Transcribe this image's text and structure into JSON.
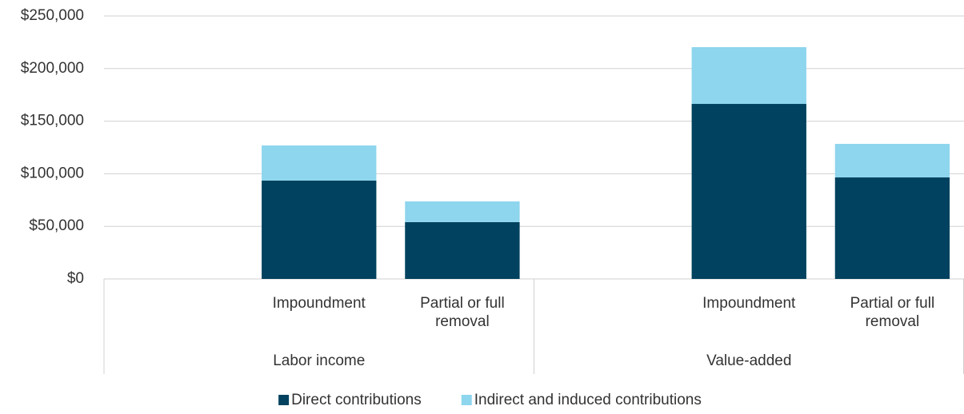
{
  "chart_data": {
    "type": "stacked_bar",
    "categories": [
      null,
      "Impoundment",
      "Partial or full removal",
      null,
      "Impoundment",
      "Partial or full removal"
    ],
    "groups": [
      "Labor income",
      "Value-added"
    ],
    "series": [
      {
        "name": "Direct contributions",
        "color": "#00425f",
        "values": [
          null,
          93500,
          54000,
          null,
          166400,
          96500
        ]
      },
      {
        "name": "Indirect and induced contributions",
        "color": "#8ed5ee",
        "values": [
          null,
          33400,
          19700,
          null,
          54000,
          31900
        ]
      }
    ],
    "ylim": [
      0,
      250000
    ],
    "yticks": [
      {
        "value": 0,
        "label": "$0"
      },
      {
        "value": 50000,
        "label": "$50,000"
      },
      {
        "value": 100000,
        "label": "$100,000"
      },
      {
        "value": 150000,
        "label": "$150,000"
      },
      {
        "value": 200000,
        "label": "$200,000"
      },
      {
        "value": 250000,
        "label": "$250,000"
      }
    ],
    "grid": true,
    "legend": "bottom"
  }
}
